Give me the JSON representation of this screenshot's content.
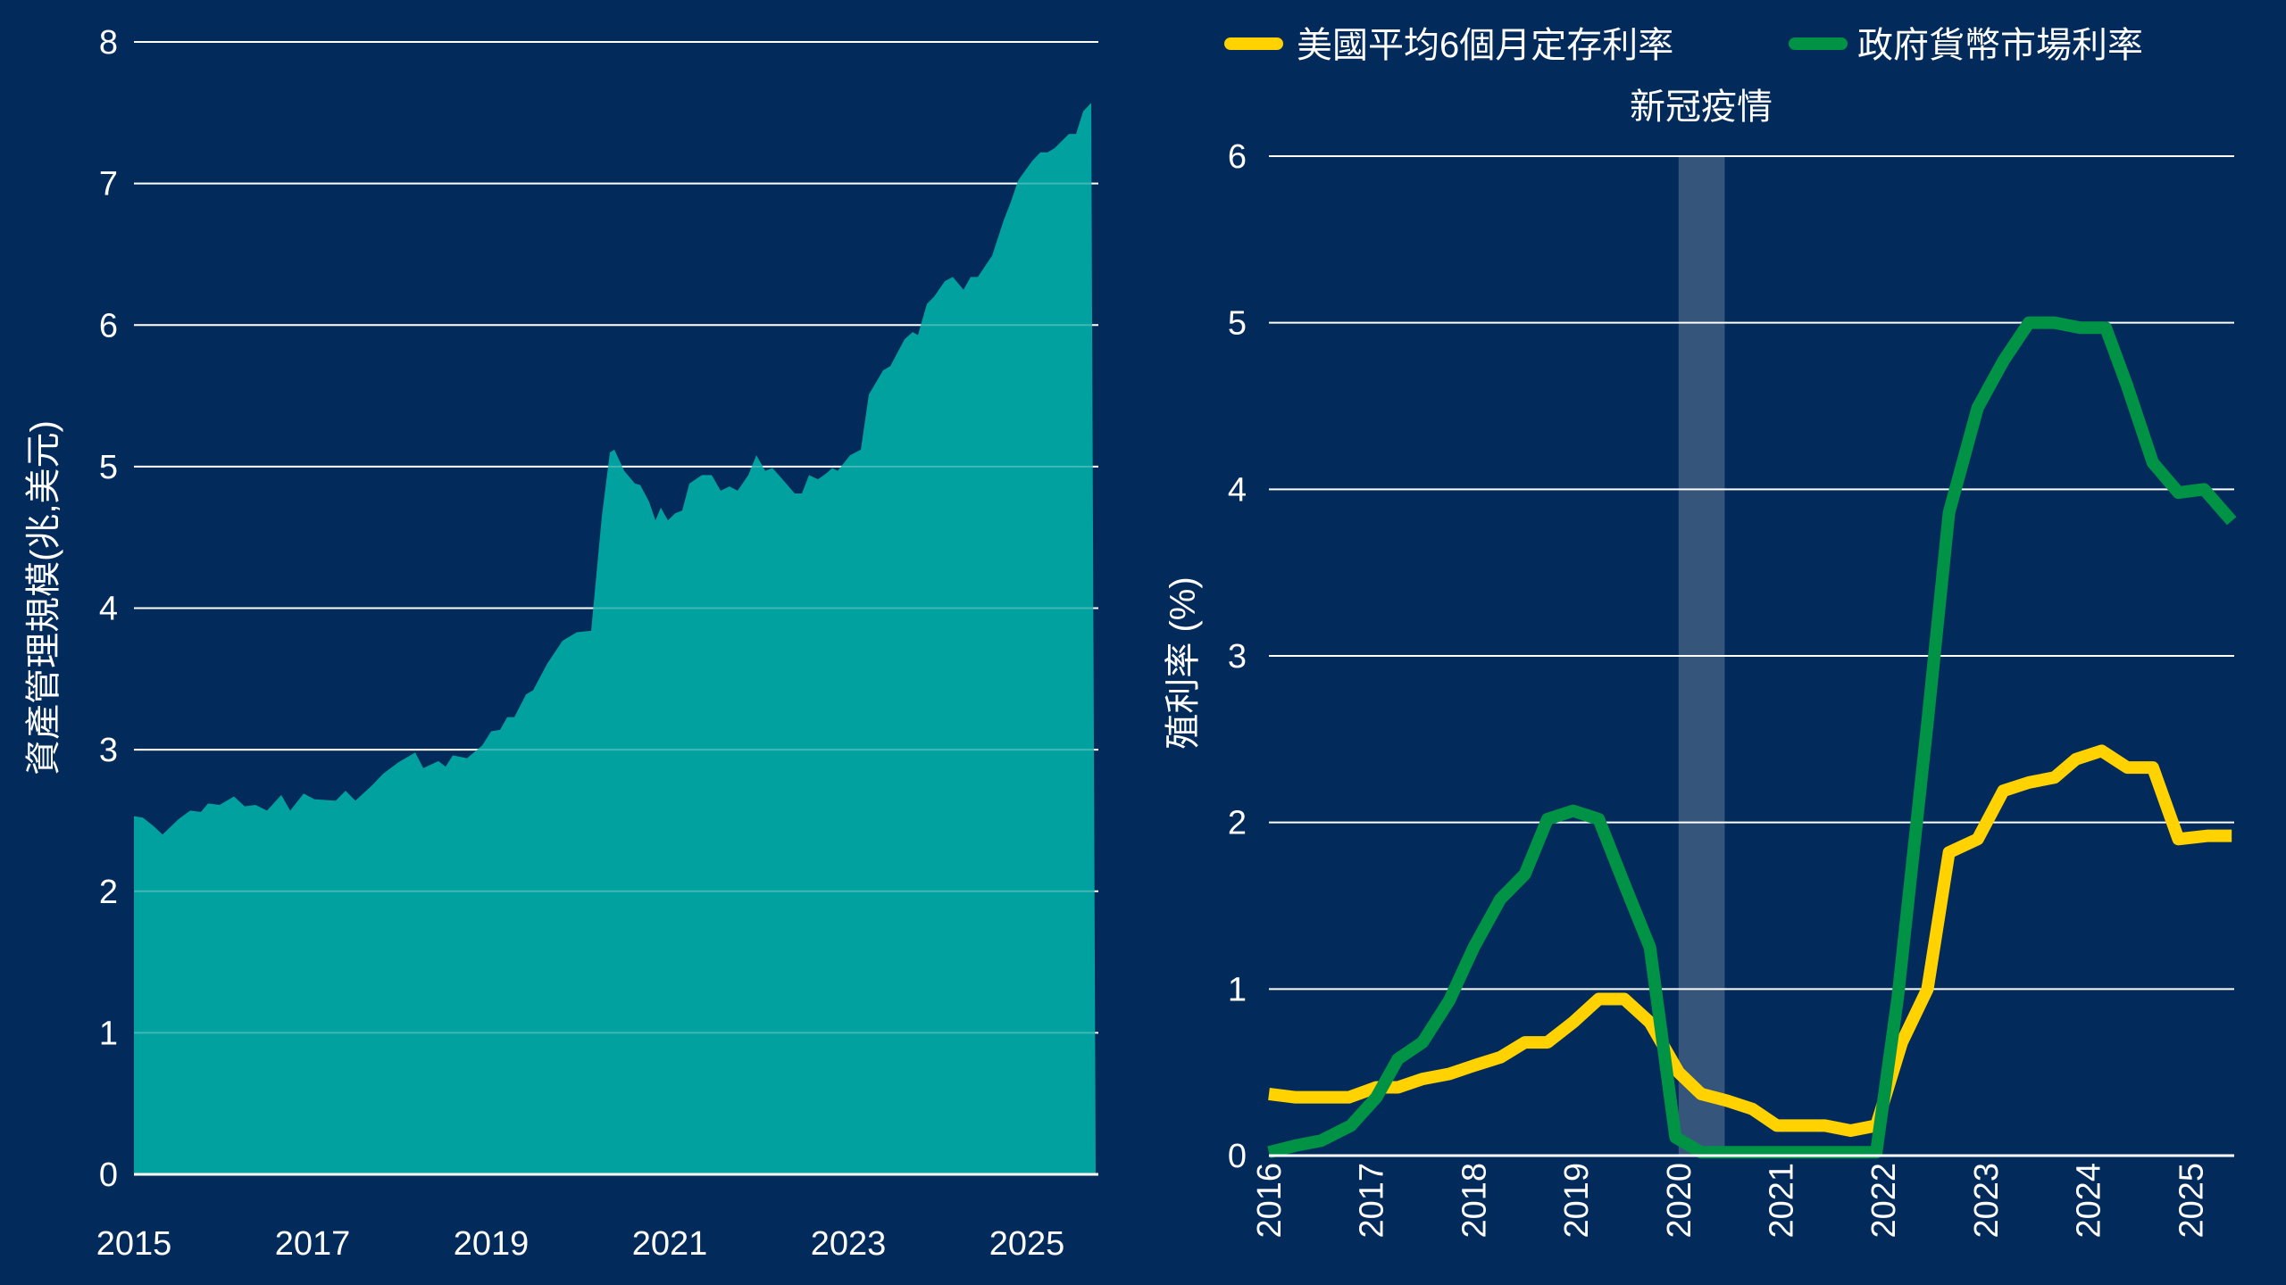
{
  "colors": {
    "background": "#022b5c",
    "area": "#00a19f",
    "grid": "#ffffff",
    "deposit": "#ffd200",
    "mmf": "#009245",
    "covid_band": "#36557a"
  },
  "chart_data": [
    {
      "type": "area",
      "xlabel": "",
      "ylabel": "資產管理規模(兆,美元)",
      "xlim": [
        2015,
        2025.8
      ],
      "ylim": [
        0,
        8
      ],
      "yticks": [
        0,
        1,
        2,
        3,
        4,
        5,
        6,
        7,
        8
      ],
      "xticks": [
        2015,
        2017,
        2019,
        2021,
        2023,
        2025
      ],
      "grid": true,
      "x": [
        2015.0,
        2015.1,
        2015.22,
        2015.32,
        2015.5,
        2015.63,
        2015.75,
        2015.83,
        2015.96,
        2016.12,
        2016.24,
        2016.36,
        2016.49,
        2016.65,
        2016.75,
        2016.9,
        2017.02,
        2017.26,
        2017.37,
        2017.48,
        2017.67,
        2017.79,
        2017.96,
        2018.15,
        2018.24,
        2018.41,
        2018.49,
        2018.57,
        2018.73,
        2018.9,
        2019.0,
        2019.1,
        2019.18,
        2019.26,
        2019.39,
        2019.47,
        2019.63,
        2019.8,
        2019.96,
        2020.12,
        2020.24,
        2020.33,
        2020.38,
        2020.49,
        2020.61,
        2020.67,
        2020.77,
        2020.84,
        2020.9,
        2020.98,
        2021.06,
        2021.14,
        2021.22,
        2021.36,
        2021.47,
        2021.57,
        2021.67,
        2021.76,
        2021.88,
        2021.97,
        2022.07,
        2022.15,
        2022.25,
        2022.4,
        2022.48,
        2022.56,
        2022.66,
        2022.75,
        2022.82,
        2022.88,
        2023.02,
        2023.14,
        2023.23,
        2023.39,
        2023.47,
        2023.63,
        2023.72,
        2023.78,
        2023.88,
        2023.96,
        2024.08,
        2024.17,
        2024.29,
        2024.37,
        2024.45,
        2024.61,
        2024.74,
        2024.82,
        2024.9,
        2025.06,
        2025.15,
        2025.23,
        2025.31,
        2025.47,
        2025.55,
        2025.63,
        2025.72
      ],
      "values": [
        2.53,
        2.52,
        2.46,
        2.4,
        2.51,
        2.57,
        2.56,
        2.62,
        2.61,
        2.67,
        2.6,
        2.61,
        2.57,
        2.68,
        2.57,
        2.69,
        2.65,
        2.64,
        2.71,
        2.64,
        2.75,
        2.83,
        2.91,
        2.98,
        2.87,
        2.92,
        2.88,
        2.96,
        2.94,
        3.03,
        3.13,
        3.14,
        3.23,
        3.23,
        3.39,
        3.42,
        3.61,
        3.77,
        3.83,
        3.84,
        4.65,
        5.1,
        5.12,
        4.97,
        4.88,
        4.87,
        4.75,
        4.62,
        4.71,
        4.62,
        4.67,
        4.69,
        4.88,
        4.94,
        4.94,
        4.83,
        4.86,
        4.83,
        4.94,
        5.08,
        4.97,
        4.99,
        4.92,
        4.81,
        4.81,
        4.94,
        4.91,
        4.95,
        4.99,
        4.97,
        5.08,
        5.12,
        5.51,
        5.68,
        5.71,
        5.9,
        5.95,
        5.93,
        6.15,
        6.2,
        6.31,
        6.34,
        6.25,
        6.34,
        6.34,
        6.49,
        6.74,
        6.87,
        7.02,
        7.16,
        7.22,
        7.22,
        7.25,
        7.35,
        7.35,
        7.51,
        7.57
      ]
    },
    {
      "type": "line",
      "ylabel": "殖利率 (%)",
      "xlim": [
        2016,
        2025.42
      ],
      "ylim": [
        0,
        6
      ],
      "yticks": [
        0,
        1,
        2,
        3,
        4,
        5,
        6
      ],
      "xticks": [
        2016,
        2017,
        2018,
        2019,
        2020,
        2021,
        2022,
        2023,
        2024,
        2025
      ],
      "grid": true,
      "legend": "top",
      "annotation": {
        "label": "新冠疫情",
        "x_range": [
          2020.0,
          2020.45
        ]
      },
      "series": [
        {
          "name": "美國平均6個月定存利率",
          "color": "#ffd200",
          "x": [
            2016.0,
            2016.26,
            2016.78,
            2017.05,
            2017.26,
            2017.5,
            2017.76,
            2018.0,
            2018.26,
            2018.5,
            2018.72,
            2018.97,
            2019.22,
            2019.47,
            2019.72,
            2020.0,
            2020.22,
            2020.47,
            2020.72,
            2020.96,
            2021.43,
            2021.68,
            2021.93,
            2022.18,
            2022.43,
            2022.64,
            2022.92,
            2023.17,
            2023.42,
            2023.67,
            2023.88,
            2024.13,
            2024.38,
            2024.63,
            2024.88,
            2025.17,
            2025.4
          ],
          "values": [
            0.37,
            0.35,
            0.35,
            0.41,
            0.41,
            0.46,
            0.49,
            0.54,
            0.59,
            0.68,
            0.68,
            0.8,
            0.94,
            0.94,
            0.8,
            0.5,
            0.37,
            0.33,
            0.28,
            0.18,
            0.18,
            0.15,
            0.18,
            0.68,
            1.0,
            1.82,
            1.9,
            2.19,
            2.24,
            2.27,
            2.38,
            2.43,
            2.33,
            2.33,
            1.9,
            1.92,
            1.92
          ]
        },
        {
          "name": "政府貨幣市場利率",
          "color": "#009245",
          "x": [
            2016.0,
            2016.26,
            2016.51,
            2016.8,
            2017.05,
            2017.26,
            2017.5,
            2017.76,
            2018.0,
            2018.26,
            2018.5,
            2018.72,
            2018.97,
            2019.22,
            2019.47,
            2019.72,
            2019.97,
            2020.22,
            2021.93,
            2022.14,
            2022.43,
            2022.64,
            2022.92,
            2023.17,
            2023.42,
            2023.67,
            2023.92,
            2024.17,
            2024.38,
            2024.63,
            2024.88,
            2025.13,
            2025.4
          ],
          "values": [
            0.02,
            0.06,
            0.09,
            0.18,
            0.35,
            0.58,
            0.68,
            0.93,
            1.25,
            1.54,
            1.69,
            2.02,
            2.07,
            2.02,
            1.63,
            1.25,
            0.11,
            0.02,
            0.02,
            0.95,
            2.6,
            3.86,
            4.49,
            4.77,
            5.0,
            5.0,
            4.97,
            4.97,
            4.62,
            4.16,
            3.98,
            4.0,
            3.81
          ]
        }
      ]
    }
  ]
}
